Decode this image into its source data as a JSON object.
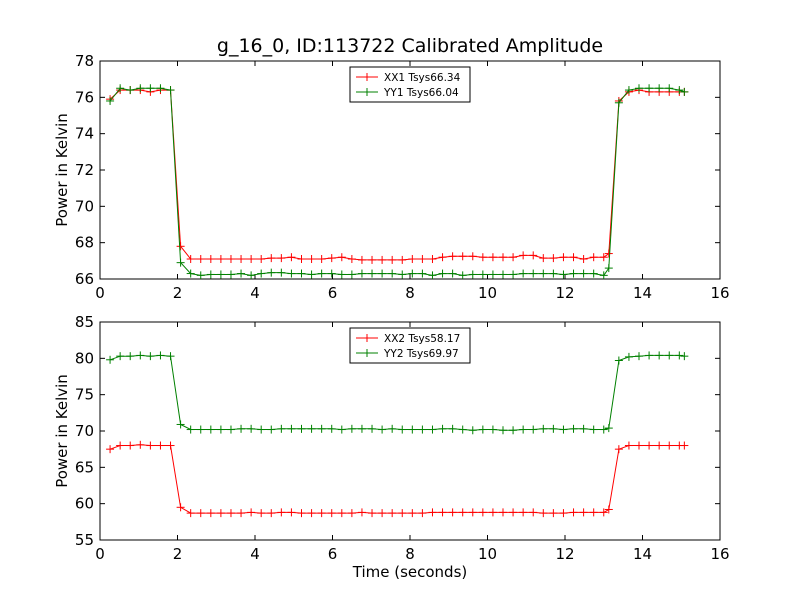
{
  "figure": {
    "title": "g_16_0, ID:113722 Calibrated Amplitude"
  },
  "chart_data": [
    {
      "type": "line",
      "title": "g_16_0, ID:113722 Calibrated Amplitude",
      "xlabel": "",
      "ylabel": "Power in Kelvin",
      "xlim": [
        0,
        16
      ],
      "ylim": [
        66,
        78
      ],
      "xticks": [
        0,
        2,
        4,
        6,
        8,
        10,
        12,
        14,
        16
      ],
      "yticks": [
        66,
        68,
        70,
        72,
        74,
        76,
        78
      ],
      "grid": false,
      "legend_position": "top-center",
      "x": [
        0.26,
        0.52,
        0.78,
        1.04,
        1.3,
        1.56,
        1.82,
        2.08,
        2.34,
        2.6,
        2.86,
        3.12,
        3.38,
        3.64,
        3.9,
        4.16,
        4.42,
        4.68,
        4.94,
        5.2,
        5.46,
        5.72,
        5.98,
        6.24,
        6.5,
        6.76,
        7.02,
        7.28,
        7.54,
        7.8,
        8.06,
        8.32,
        8.58,
        8.84,
        9.1,
        9.36,
        9.62,
        9.88,
        10.14,
        10.4,
        10.66,
        10.92,
        11.18,
        11.44,
        11.7,
        11.96,
        12.22,
        12.48,
        12.74,
        13.0,
        13.13,
        13.39,
        13.65,
        13.91,
        14.17,
        14.43,
        14.69,
        14.95,
        15.08
      ],
      "series": [
        {
          "name": "XX1 Tsys66.34",
          "color": "#ff0000",
          "values": [
            75.9,
            76.4,
            76.4,
            76.4,
            76.3,
            76.4,
            76.4,
            67.8,
            67.1,
            67.1,
            67.1,
            67.1,
            67.1,
            67.1,
            67.1,
            67.1,
            67.15,
            67.15,
            67.2,
            67.1,
            67.1,
            67.1,
            67.15,
            67.2,
            67.1,
            67.05,
            67.05,
            67.05,
            67.05,
            67.05,
            67.1,
            67.1,
            67.1,
            67.2,
            67.25,
            67.25,
            67.25,
            67.2,
            67.2,
            67.2,
            67.2,
            67.3,
            67.3,
            67.15,
            67.15,
            67.2,
            67.2,
            67.1,
            67.2,
            67.2,
            67.4,
            75.8,
            76.3,
            76.4,
            76.3,
            76.3,
            76.3,
            76.3,
            76.3
          ]
        },
        {
          "name": "YY1 Tsys66.04",
          "color": "#008000",
          "values": [
            75.8,
            76.5,
            76.4,
            76.5,
            76.5,
            76.5,
            76.4,
            66.9,
            66.3,
            66.2,
            66.25,
            66.25,
            66.25,
            66.3,
            66.2,
            66.3,
            66.35,
            66.35,
            66.3,
            66.3,
            66.25,
            66.3,
            66.3,
            66.25,
            66.25,
            66.3,
            66.3,
            66.3,
            66.3,
            66.25,
            66.3,
            66.3,
            66.2,
            66.3,
            66.3,
            66.2,
            66.25,
            66.25,
            66.25,
            66.25,
            66.25,
            66.3,
            66.3,
            66.3,
            66.3,
            66.25,
            66.3,
            66.3,
            66.3,
            66.2,
            66.6,
            75.7,
            76.4,
            76.5,
            76.5,
            76.5,
            76.5,
            76.4,
            76.3
          ]
        }
      ]
    },
    {
      "type": "line",
      "title": "",
      "xlabel": "Time (seconds)",
      "ylabel": "Power in Kelvin",
      "xlim": [
        0,
        16
      ],
      "ylim": [
        55,
        85
      ],
      "xticks": [
        0,
        2,
        4,
        6,
        8,
        10,
        12,
        14,
        16
      ],
      "yticks": [
        55,
        60,
        65,
        70,
        75,
        80,
        85
      ],
      "grid": false,
      "legend_position": "top-center",
      "x": [
        0.26,
        0.52,
        0.78,
        1.04,
        1.3,
        1.56,
        1.82,
        2.08,
        2.34,
        2.6,
        2.86,
        3.12,
        3.38,
        3.64,
        3.9,
        4.16,
        4.42,
        4.68,
        4.94,
        5.2,
        5.46,
        5.72,
        5.98,
        6.24,
        6.5,
        6.76,
        7.02,
        7.28,
        7.54,
        7.8,
        8.06,
        8.32,
        8.58,
        8.84,
        9.1,
        9.36,
        9.62,
        9.88,
        10.14,
        10.4,
        10.66,
        10.92,
        11.18,
        11.44,
        11.7,
        11.96,
        12.22,
        12.48,
        12.74,
        13.0,
        13.13,
        13.39,
        13.65,
        13.91,
        14.17,
        14.43,
        14.69,
        14.95,
        15.08
      ],
      "series": [
        {
          "name": "XX2 Tsys58.17",
          "color": "#ff0000",
          "values": [
            67.5,
            68.0,
            68.0,
            68.1,
            68.0,
            68.0,
            68.0,
            59.5,
            58.7,
            58.7,
            58.7,
            58.7,
            58.7,
            58.7,
            58.8,
            58.7,
            58.7,
            58.8,
            58.8,
            58.7,
            58.7,
            58.7,
            58.7,
            58.7,
            58.7,
            58.8,
            58.7,
            58.7,
            58.7,
            58.7,
            58.7,
            58.7,
            58.8,
            58.8,
            58.8,
            58.8,
            58.8,
            58.8,
            58.8,
            58.8,
            58.8,
            58.8,
            58.8,
            58.7,
            58.7,
            58.7,
            58.8,
            58.8,
            58.8,
            58.8,
            59.2,
            67.5,
            68.0,
            68.0,
            68.0,
            68.0,
            68.0,
            68.0,
            68.0
          ]
        },
        {
          "name": "YY2 Tsys69.97",
          "color": "#008000",
          "values": [
            79.8,
            80.3,
            80.3,
            80.4,
            80.3,
            80.4,
            80.3,
            70.9,
            70.2,
            70.2,
            70.2,
            70.2,
            70.2,
            70.3,
            70.3,
            70.2,
            70.2,
            70.3,
            70.3,
            70.3,
            70.3,
            70.3,
            70.3,
            70.2,
            70.3,
            70.3,
            70.3,
            70.2,
            70.3,
            70.2,
            70.2,
            70.2,
            70.2,
            70.3,
            70.3,
            70.2,
            70.1,
            70.2,
            70.2,
            70.1,
            70.1,
            70.2,
            70.2,
            70.3,
            70.3,
            70.2,
            70.3,
            70.3,
            70.2,
            70.2,
            70.4,
            79.7,
            80.2,
            80.3,
            80.4,
            80.4,
            80.4,
            80.4,
            80.3
          ]
        }
      ]
    }
  ]
}
